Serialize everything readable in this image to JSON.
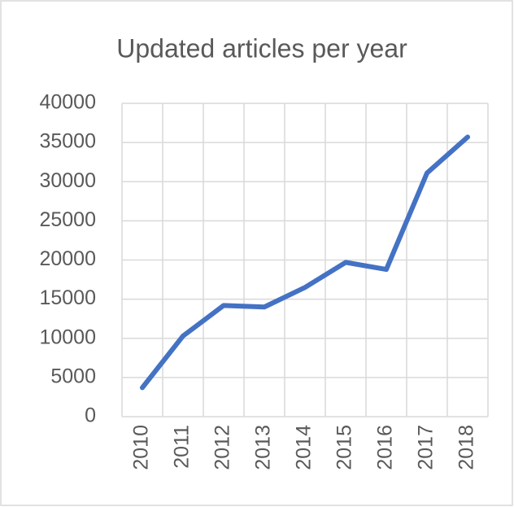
{
  "chart_data": {
    "type": "line",
    "title": "Updated articles per year",
    "categories": [
      "2010",
      "2011",
      "2012",
      "2013",
      "2014",
      "2015",
      "2016",
      "2017",
      "2018"
    ],
    "series": [
      {
        "name": "Updated articles",
        "color": "#4472c4",
        "values": [
          3700,
          10300,
          14200,
          14000,
          16500,
          19700,
          18800,
          31100,
          35700
        ]
      }
    ],
    "ylim": [
      0,
      40000
    ],
    "yticks": [
      0,
      5000,
      10000,
      15000,
      20000,
      25000,
      30000,
      35000,
      40000
    ],
    "grid": true
  }
}
